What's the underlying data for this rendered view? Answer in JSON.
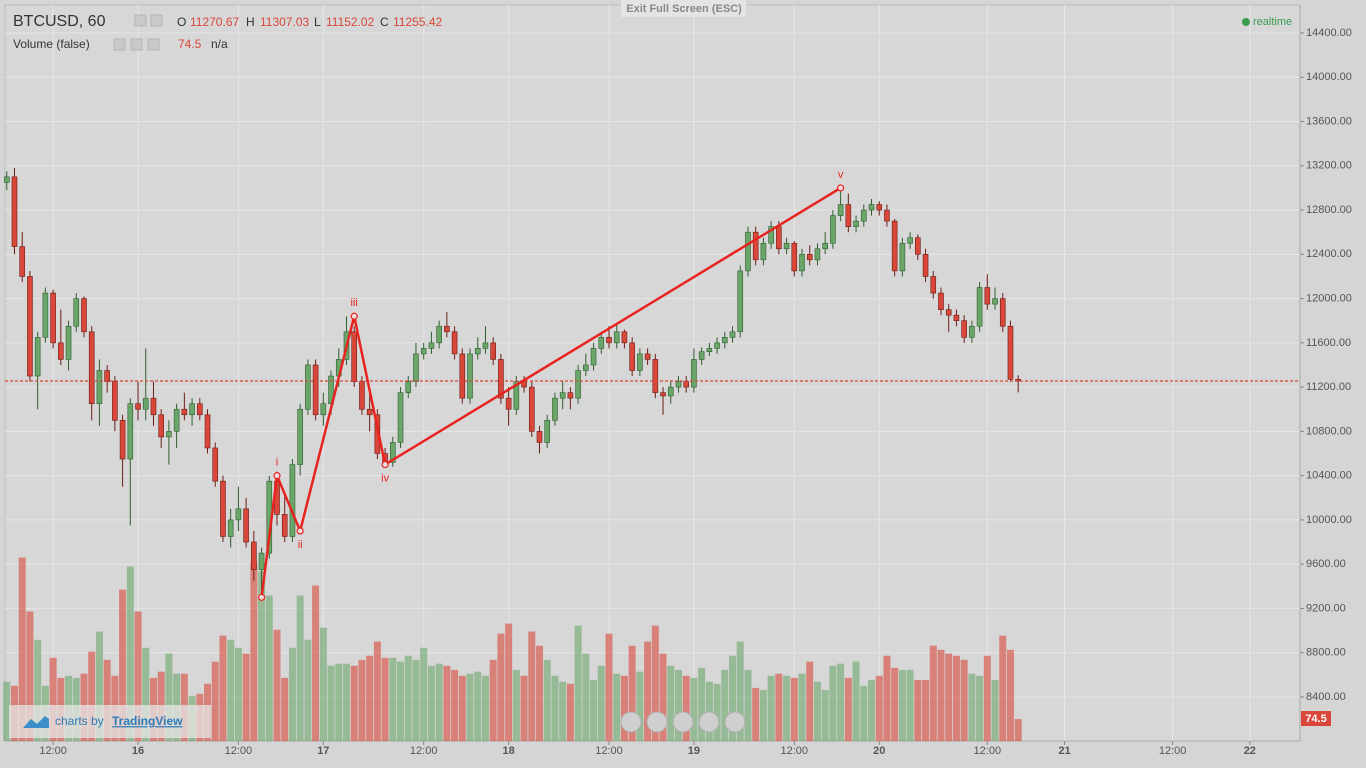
{
  "chart_data": {
    "type": "candlestick",
    "title": "BTCUSD, 60",
    "candles": [
      [
        13050,
        13150,
        12980,
        13100
      ],
      [
        13100,
        13180,
        12400,
        12470
      ],
      [
        12470,
        12600,
        12150,
        12200
      ],
      [
        12200,
        12250,
        11250,
        11300
      ],
      [
        11300,
        11700,
        11000,
        11650
      ],
      [
        11650,
        12100,
        11600,
        12050
      ],
      [
        12050,
        12080,
        11550,
        11600
      ],
      [
        11600,
        11900,
        11400,
        11450
      ],
      [
        11450,
        11800,
        11350,
        11750
      ],
      [
        11750,
        12050,
        11700,
        12000
      ],
      [
        12000,
        12020,
        11650,
        11700
      ],
      [
        11700,
        11750,
        10900,
        11050
      ],
      [
        11050,
        11450,
        10850,
        11350
      ],
      [
        11350,
        11400,
        11150,
        11250
      ],
      [
        11250,
        11300,
        10800,
        10900
      ],
      [
        10900,
        10950,
        10300,
        10550
      ],
      [
        10550,
        11100,
        9950,
        11050
      ],
      [
        11050,
        11250,
        10900,
        11000
      ],
      [
        11000,
        11550,
        10900,
        11100
      ],
      [
        11100,
        11250,
        10850,
        10950
      ],
      [
        10950,
        11000,
        10650,
        10750
      ],
      [
        10750,
        10900,
        10500,
        10800
      ],
      [
        10800,
        11050,
        10650,
        11000
      ],
      [
        11000,
        11150,
        10900,
        10950
      ],
      [
        10950,
        11100,
        10850,
        11050
      ],
      [
        11050,
        11100,
        10900,
        10950
      ],
      [
        10950,
        11000,
        10600,
        10650
      ],
      [
        10650,
        10700,
        10300,
        10350
      ],
      [
        10350,
        10400,
        9800,
        9850
      ],
      [
        9850,
        10100,
        9750,
        10000
      ],
      [
        10000,
        10300,
        9900,
        10100
      ],
      [
        10100,
        10200,
        9750,
        9800
      ],
      [
        9800,
        9900,
        9450,
        9550
      ],
      [
        9550,
        9750,
        9300,
        9700
      ],
      [
        9700,
        10400,
        9650,
        10350
      ],
      [
        10350,
        10400,
        9950,
        10050
      ],
      [
        10050,
        10250,
        9800,
        9850
      ],
      [
        9850,
        10550,
        9800,
        10500
      ],
      [
        10500,
        11050,
        10400,
        11000
      ],
      [
        11000,
        11450,
        10950,
        11400
      ],
      [
        11400,
        11450,
        10900,
        10950
      ],
      [
        10950,
        11150,
        10850,
        11050
      ],
      [
        11050,
        11350,
        10950,
        11300
      ],
      [
        11300,
        11550,
        11200,
        11450
      ],
      [
        11450,
        11840,
        11400,
        11700
      ],
      [
        11700,
        11750,
        11200,
        11250
      ],
      [
        11250,
        11300,
        10950,
        11000
      ],
      [
        11000,
        11150,
        10800,
        10950
      ],
      [
        10950,
        11000,
        10550,
        10600
      ],
      [
        10600,
        10650,
        10500,
        10520
      ],
      [
        10520,
        10750,
        10480,
        10700
      ],
      [
        10700,
        11200,
        10650,
        11150
      ],
      [
        11150,
        11300,
        11100,
        11250
      ],
      [
        11250,
        11600,
        11200,
        11500
      ],
      [
        11500,
        11600,
        11450,
        11550
      ],
      [
        11550,
        11700,
        11500,
        11600
      ],
      [
        11600,
        11800,
        11550,
        11750
      ],
      [
        11750,
        11880,
        11650,
        11700
      ],
      [
        11700,
        11750,
        11450,
        11500
      ],
      [
        11500,
        11550,
        11050,
        11100
      ],
      [
        11100,
        11550,
        11050,
        11500
      ],
      [
        11500,
        11650,
        11450,
        11550
      ],
      [
        11550,
        11750,
        11500,
        11600
      ],
      [
        11600,
        11650,
        11400,
        11450
      ],
      [
        11450,
        11500,
        11050,
        11100
      ],
      [
        11100,
        11200,
        10850,
        11000
      ],
      [
        11000,
        11300,
        10950,
        11250
      ],
      [
        11250,
        11300,
        11150,
        11200
      ],
      [
        11200,
        11250,
        10750,
        10800
      ],
      [
        10800,
        10850,
        10600,
        10700
      ],
      [
        10700,
        10950,
        10650,
        10900
      ],
      [
        10900,
        11150,
        10850,
        11100
      ],
      [
        11100,
        11250,
        11000,
        11150
      ],
      [
        11150,
        11200,
        11000,
        11100
      ],
      [
        11100,
        11400,
        11050,
        11350
      ],
      [
        11350,
        11500,
        11300,
        11400
      ],
      [
        11400,
        11600,
        11350,
        11550
      ],
      [
        11550,
        11700,
        11500,
        11650
      ],
      [
        11650,
        11750,
        11550,
        11600
      ],
      [
        11600,
        11780,
        11550,
        11700
      ],
      [
        11700,
        11720,
        11550,
        11600
      ],
      [
        11600,
        11650,
        11300,
        11350
      ],
      [
        11350,
        11550,
        11300,
        11500
      ],
      [
        11500,
        11550,
        11400,
        11450
      ],
      [
        11450,
        11500,
        11100,
        11150
      ],
      [
        11150,
        11200,
        10950,
        11120
      ],
      [
        11120,
        11250,
        11050,
        11200
      ],
      [
        11200,
        11300,
        11150,
        11250
      ],
      [
        11250,
        11300,
        11150,
        11200
      ],
      [
        11200,
        11550,
        11150,
        11450
      ],
      [
        11450,
        11560,
        11400,
        11520
      ],
      [
        11520,
        11600,
        11480,
        11550
      ],
      [
        11550,
        11650,
        11500,
        11600
      ],
      [
        11600,
        11700,
        11550,
        11650
      ],
      [
        11650,
        11750,
        11600,
        11700
      ],
      [
        11700,
        12300,
        11650,
        12250
      ],
      [
        12250,
        12650,
        12200,
        12600
      ],
      [
        12600,
        12650,
        12300,
        12350
      ],
      [
        12350,
        12550,
        12300,
        12500
      ],
      [
        12500,
        12700,
        12450,
        12650
      ],
      [
        12650,
        12700,
        12400,
        12450
      ],
      [
        12450,
        12550,
        12400,
        12500
      ],
      [
        12500,
        12520,
        12200,
        12250
      ],
      [
        12250,
        12450,
        12200,
        12400
      ],
      [
        12400,
        12480,
        12300,
        12350
      ],
      [
        12350,
        12500,
        12300,
        12450
      ],
      [
        12450,
        12600,
        12400,
        12500
      ],
      [
        12500,
        12800,
        12450,
        12750
      ],
      [
        12750,
        13000,
        12700,
        12850
      ],
      [
        12850,
        12950,
        12600,
        12650
      ],
      [
        12650,
        12750,
        12600,
        12700
      ],
      [
        12700,
        12850,
        12650,
        12800
      ],
      [
        12800,
        12900,
        12750,
        12850
      ],
      [
        12850,
        12880,
        12750,
        12800
      ],
      [
        12800,
        12850,
        12650,
        12700
      ],
      [
        12700,
        12720,
        12200,
        12250
      ],
      [
        12250,
        12550,
        12200,
        12500
      ],
      [
        12500,
        12600,
        12450,
        12550
      ],
      [
        12550,
        12580,
        12350,
        12400
      ],
      [
        12400,
        12450,
        12150,
        12200
      ],
      [
        12200,
        12250,
        12000,
        12050
      ],
      [
        12050,
        12100,
        11850,
        11900
      ],
      [
        11900,
        11950,
        11700,
        11850
      ],
      [
        11850,
        11900,
        11750,
        11800
      ],
      [
        11800,
        11850,
        11600,
        11650
      ],
      [
        11650,
        11800,
        11600,
        11750
      ],
      [
        11750,
        12150,
        11700,
        12100
      ],
      [
        12100,
        12220,
        11900,
        11950
      ],
      [
        11950,
        12100,
        11900,
        12000
      ],
      [
        12000,
        12050,
        11700,
        11750
      ],
      [
        11750,
        11800,
        11250,
        11270.67
      ],
      [
        11270.67,
        11307.03,
        11152.02,
        11255.42
      ]
    ],
    "volume": [
      201,
      187,
      622,
      439,
      343,
      187,
      282,
      214,
      221,
      214,
      228,
      303,
      371,
      275,
      221,
      513,
      592,
      439,
      316,
      214,
      235,
      296,
      228,
      228,
      153,
      160,
      194,
      269,
      357,
      343,
      316,
      296,
      609,
      575,
      493,
      377,
      214,
      316,
      493,
      343,
      527,
      384,
      255,
      262,
      262,
      255,
      275,
      289,
      337,
      282,
      282,
      269,
      289,
      275,
      316,
      255,
      262,
      255,
      241,
      221,
      228,
      235,
      221,
      275,
      364,
      398,
      241,
      221,
      371,
      323,
      275,
      221,
      201,
      194,
      391,
      296,
      207,
      255,
      364,
      228,
      221,
      323,
      235,
      337,
      391,
      296,
      255,
      241,
      221,
      214,
      248,
      201,
      194,
      241,
      289,
      337,
      241,
      180,
      173,
      221,
      228,
      221,
      214,
      228,
      269,
      201,
      173,
      255,
      262,
      214,
      269,
      187,
      207,
      221,
      289,
      248,
      241,
      241,
      207,
      207,
      323,
      309,
      296,
      289,
      275,
      228,
      221,
      289,
      207,
      357,
      309,
      74.5
    ],
    "up_color": "#6aa56a",
    "down_color": "#d9473a",
    "ylim": [
      8002,
      14653
    ],
    "yticks": [
      {
        "value": 8400,
        "label": "8400.00"
      },
      {
        "value": 8800,
        "label": "8800.00"
      },
      {
        "value": 9200,
        "label": "9200.00"
      },
      {
        "value": 9600,
        "label": "9600.00"
      },
      {
        "value": 10000,
        "label": "10000.00"
      },
      {
        "value": 10400,
        "label": "10400.00"
      },
      {
        "value": 10800,
        "label": "10800.00"
      },
      {
        "value": 11200,
        "label": "11200.00"
      },
      {
        "value": 11600,
        "label": "11600.00"
      },
      {
        "value": 12000,
        "label": "12000.00"
      },
      {
        "value": 12400,
        "label": "12400.00"
      },
      {
        "value": 12800,
        "label": "12800.00"
      },
      {
        "value": 13200,
        "label": "13200.00"
      },
      {
        "value": 13600,
        "label": "13600.00"
      },
      {
        "value": 14000,
        "label": "14000.00"
      },
      {
        "value": 14400,
        "label": "14400.00"
      }
    ],
    "xlim": [
      -0.23,
      167.5
    ],
    "xticks": [
      {
        "value": 6,
        "label": "12:00"
      },
      {
        "value": 17,
        "label": "16"
      },
      {
        "value": 30,
        "label": "12:00"
      },
      {
        "value": 41,
        "label": "17"
      },
      {
        "value": 54,
        "label": "12:00"
      },
      {
        "value": 65,
        "label": "18"
      },
      {
        "value": 78,
        "label": "12:00"
      },
      {
        "value": 89,
        "label": "19"
      },
      {
        "value": 102,
        "label": "12:00"
      },
      {
        "value": 113,
        "label": "20"
      },
      {
        "value": 127,
        "label": "12:00"
      },
      {
        "value": 137,
        "label": "21"
      },
      {
        "value": 151,
        "label": "12:00"
      },
      {
        "value": 161,
        "label": "22"
      }
    ],
    "grid": true,
    "wave": {
      "color": "#e8231f",
      "x": [
        33,
        35,
        38,
        45,
        49,
        108
      ],
      "y": [
        9300,
        10400,
        9900,
        11840,
        10500,
        13000
      ],
      "labels": [
        null,
        "i",
        "ii",
        "iii",
        "iv",
        "v"
      ]
    },
    "volume_label": "Volume (false)",
    "volume_extra": "n/a",
    "ohlc_letters": [
      "O",
      "H",
      "L",
      "C"
    ]
  },
  "ui": {
    "exit": "Exit Full Screen (ESC)",
    "realtime": "realtime",
    "brand_prefix": "charts by",
    "brand_name": "TradingView"
  }
}
